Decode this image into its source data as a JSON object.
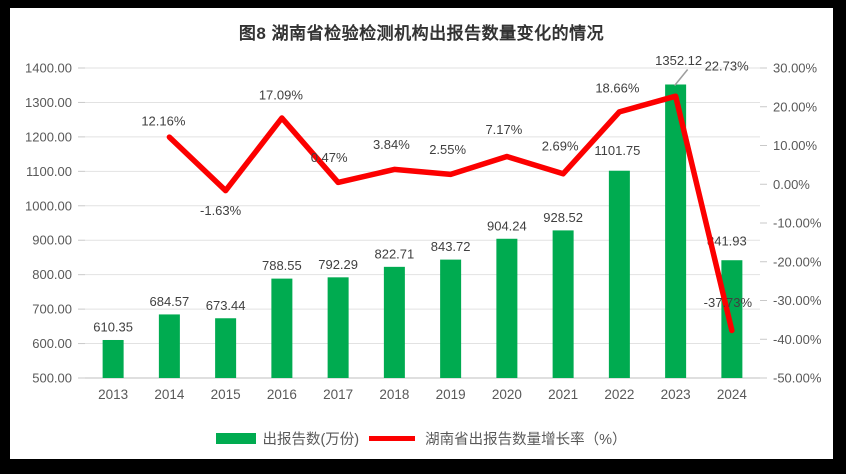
{
  "title": "图8  湖南省检验检测机构出报告数量变化的情况",
  "colors": {
    "bar": "#00AB50",
    "line": "#FC0000",
    "grid": "#E2E2E2",
    "axis_line": "#BFBFBF",
    "tick": "#C9C9C9",
    "axis_text": "#595959",
    "data_label_text": "#404040",
    "title_text": "#333333",
    "leader_line": "#9E9E9E",
    "frame": "#000000",
    "background": "#FFFFFF"
  },
  "axes": {
    "left_ticks": [
      "1400.00",
      "1300.00",
      "1200.00",
      "1100.00",
      "1000.00",
      "900.00",
      "800.00",
      "700.00",
      "600.00",
      "500.00"
    ],
    "right_ticks": [
      "30.00%",
      "20.00%",
      "10.00%",
      "0.00%",
      "-10.00%",
      "-20.00%",
      "-30.00%",
      "-40.00%",
      "-50.00%"
    ]
  },
  "legend": {
    "bar_label": "出报告数(万份)",
    "line_label": "湖南省出报告数量增长率（%）"
  },
  "chart_data": {
    "type": "bar",
    "subtype": "combo bar+line, dual axis",
    "title": "图8  湖南省检验检测机构出报告数量变化的情况",
    "categories": [
      "2013",
      "2014",
      "2015",
      "2016",
      "2017",
      "2018",
      "2019",
      "2020",
      "2021",
      "2022",
      "2023",
      "2024"
    ],
    "series": [
      {
        "name": "出报告数(万份)",
        "type": "bar",
        "axis": "left",
        "values": [
          610.35,
          684.57,
          673.44,
          788.55,
          792.29,
          822.71,
          843.72,
          904.24,
          928.52,
          1101.75,
          1352.12,
          841.93
        ],
        "labels": [
          "610.35",
          "684.57",
          "673.44",
          "788.55",
          "792.29",
          "822.71",
          "843.72",
          "904.24",
          "928.52",
          "1101.75",
          "1352.12",
          "841.93"
        ]
      },
      {
        "name": "湖南省出报告数量增长率（%）",
        "type": "line",
        "axis": "right",
        "start_index": 1,
        "values": [
          12.16,
          -1.63,
          17.09,
          0.47,
          3.84,
          2.55,
          7.17,
          2.69,
          18.66,
          22.73,
          -37.73
        ],
        "labels": [
          "12.16%",
          "-1.63%",
          "17.09%",
          "0.47%",
          "3.84%",
          "2.55%",
          "7.17%",
          "2.69%",
          "18.66%",
          "22.73%",
          "-37.73%"
        ]
      }
    ],
    "left_ylim": [
      500,
      1400
    ],
    "right_ylim": [
      -50,
      30
    ],
    "grid": true,
    "legend_position": "bottom"
  }
}
